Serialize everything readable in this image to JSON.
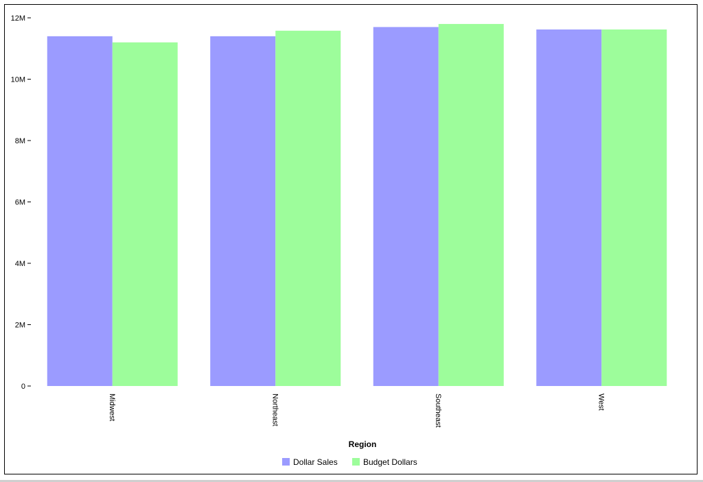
{
  "chart_data": {
    "type": "bar",
    "title": "",
    "xlabel": "Region",
    "ylabel": "",
    "categories": [
      "Midwest",
      "Northeast",
      "Southeast",
      "West"
    ],
    "series": [
      {
        "name": "Dollar Sales",
        "color": "#9b9bff",
        "values": [
          11400000,
          11400000,
          11700000,
          11620000
        ]
      },
      {
        "name": "Budget Dollars",
        "color": "#9dfd9b",
        "values": [
          11200000,
          11580000,
          11800000,
          11620000
        ]
      }
    ],
    "ylim": [
      0,
      12000000
    ],
    "y_ticks": [
      {
        "value": 0,
        "label": "0"
      },
      {
        "value": 2000000,
        "label": "2M"
      },
      {
        "value": 4000000,
        "label": "4M"
      },
      {
        "value": 6000000,
        "label": "6M"
      },
      {
        "value": 8000000,
        "label": "8M"
      },
      {
        "value": 10000000,
        "label": "10M"
      },
      {
        "value": 12000000,
        "label": "12M"
      }
    ],
    "grid": false,
    "legend_position": "bottom-center",
    "x_tick_label_orientation": "rotated-90-clockwise"
  }
}
